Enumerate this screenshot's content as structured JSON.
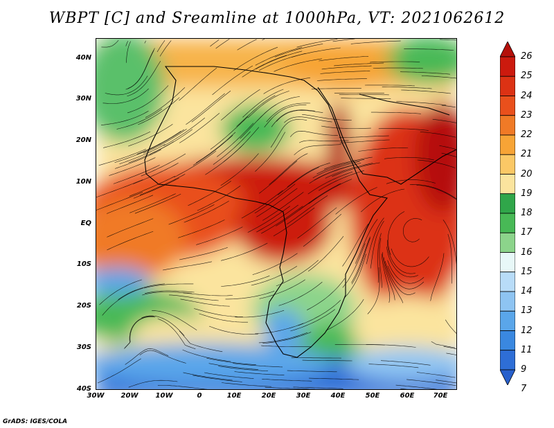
{
  "title": "WBPT [C] and Sreamline at 1000hPa, VT: 2021062612",
  "credit": "GrADS: IGES/COLA",
  "lat_labels": [
    "40N",
    "30N",
    "20N",
    "10N",
    "EQ",
    "10S",
    "20S",
    "30S",
    "40S"
  ],
  "lon_labels": [
    "30W",
    "20W",
    "10W",
    "0",
    "10E",
    "20E",
    "30E",
    "40E",
    "50E",
    "60E",
    "70E"
  ],
  "colorbar": {
    "levels": [
      "26",
      "25",
      "24",
      "23",
      "22",
      "21",
      "20",
      "19",
      "18",
      "17",
      "16",
      "15",
      "14",
      "13",
      "12",
      "11",
      "9",
      "7"
    ],
    "colors": [
      "#b5100a",
      "#cc1a0e",
      "#dc3214",
      "#e9501c",
      "#f07a26",
      "#f7a436",
      "#fbc866",
      "#fbe49e",
      "#30a64a",
      "#48b956",
      "#8cd48b",
      "#e8f8f8",
      "#b8dcf8",
      "#8ec4f2",
      "#5aa6ea",
      "#3a88e0",
      "#2e6ed6",
      "#2860cc"
    ]
  },
  "map": {
    "variable": "Wet-bulb potential temperature (C)",
    "level": "1000hPa",
    "valid_time": "2021062612",
    "lon_range": [
      -30,
      75
    ],
    "lat_range": [
      -40,
      45
    ]
  }
}
